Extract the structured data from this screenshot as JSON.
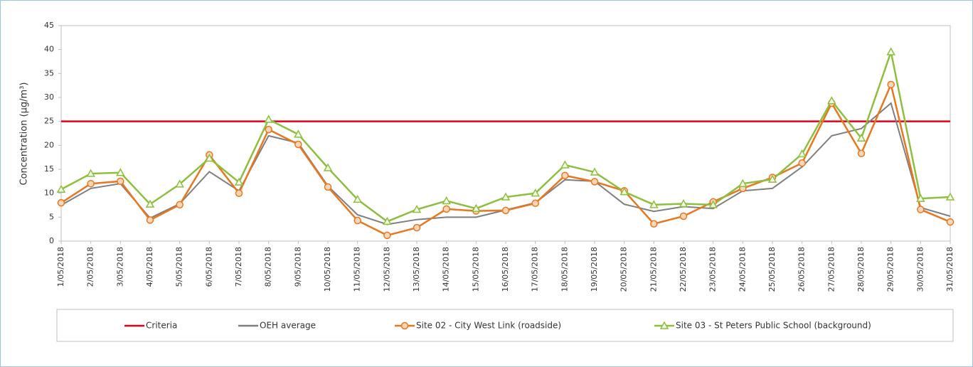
{
  "chart_data": {
    "type": "line",
    "y_label": "Concentration (µg/m³)",
    "ylim": [
      0,
      45
    ],
    "yticks": [
      0,
      5,
      10,
      15,
      20,
      25,
      30,
      35,
      40,
      45
    ],
    "x": [
      "1/05/2018",
      "2/05/2018",
      "3/05/2018",
      "4/05/2018",
      "5/05/2018",
      "6/05/2018",
      "7/05/2018",
      "8/05/2018",
      "9/05/2018",
      "10/05/2018",
      "11/05/2018",
      "12/05/2018",
      "13/05/2018",
      "14/05/2018",
      "15/05/2018",
      "16/05/2018",
      "17/05/2018",
      "18/05/2018",
      "19/05/2018",
      "20/05/2018",
      "21/05/2018",
      "22/05/2018",
      "23/05/2018",
      "24/05/2018",
      "25/05/2018",
      "26/05/2018",
      "27/05/2018",
      "28/05/2018",
      "29/05/2018",
      "30/05/2018",
      "31/05/2018"
    ],
    "series": [
      {
        "name": "Criteria",
        "color": "#e3001b",
        "marker": "none",
        "values": [
          25,
          25,
          25,
          25,
          25,
          25,
          25,
          25,
          25,
          25,
          25,
          25,
          25,
          25,
          25,
          25,
          25,
          25,
          25,
          25,
          25,
          25,
          25,
          25,
          25,
          25,
          25,
          25,
          25,
          25,
          25
        ]
      },
      {
        "name": "OEH average",
        "color": "#7f7f7f",
        "marker": "none",
        "values": [
          7.5,
          11,
          12,
          4.8,
          7.8,
          14.5,
          10.5,
          22,
          20.5,
          11.5,
          5.5,
          3.5,
          4.5,
          5,
          5,
          6.5,
          8,
          12.8,
          12.5,
          7.7,
          6.2,
          7.2,
          6.8,
          10.5,
          11,
          15.5,
          22,
          23.5,
          28.8,
          7,
          5.2
        ]
      },
      {
        "name": "Site 02 - City West Link (roadside)",
        "color": "#e8771f",
        "marker": "circle",
        "values": [
          8,
          12,
          12.5,
          4.4,
          7.6,
          18,
          10,
          23.3,
          20.2,
          11.3,
          4.3,
          1.2,
          2.8,
          6.7,
          6.3,
          6.4,
          7.9,
          13.7,
          12.4,
          10.5,
          3.6,
          5.2,
          8.2,
          11,
          13.3,
          16.3,
          28.8,
          18.3,
          32.7,
          6.6,
          4
        ]
      },
      {
        "name": "Site 03 - St Peters Public School (background)",
        "color": "#8dbf3f",
        "marker": "triangle",
        "values": [
          10.8,
          14.1,
          14.3,
          7.7,
          11.9,
          17.3,
          12.3,
          25.4,
          22.3,
          15.3,
          8.7,
          4.1,
          6.6,
          8.4,
          6.8,
          9.2,
          10,
          15.9,
          14.4,
          10.3,
          7.6,
          7.8,
          7.6,
          12,
          12.9,
          18.2,
          29.3,
          21.5,
          39.5,
          8.9,
          9.2
        ]
      }
    ]
  }
}
